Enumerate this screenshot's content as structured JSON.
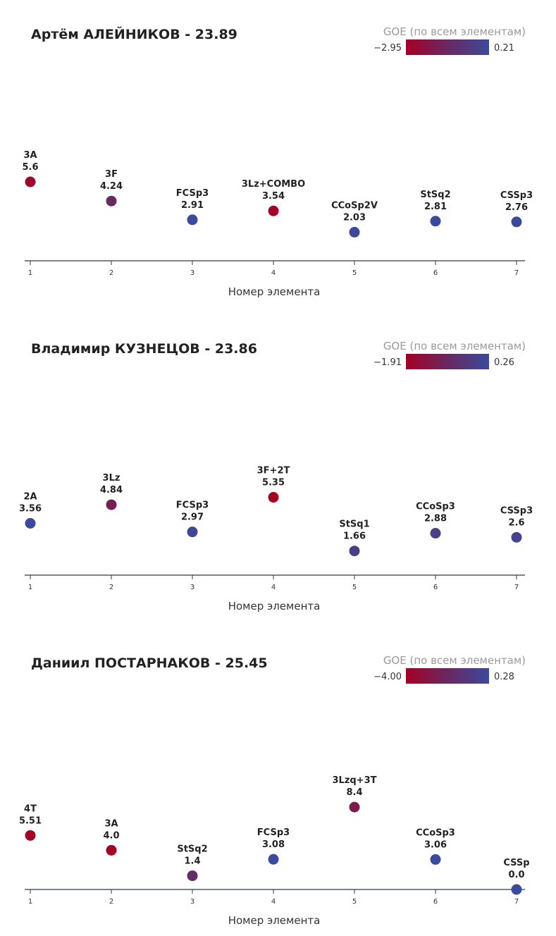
{
  "colors": {
    "goe_low": "#a50026",
    "goe_mid": "#6a2860",
    "goe_high": "#3b4a9c",
    "axis": "#2b3a4a"
  },
  "chart_data": [
    {
      "type": "scatter",
      "title": "Артём АЛЕЙНИКОВ - 23.89",
      "xlabel": "Номер элемента",
      "legend_title": "GOE (по всем элементам)",
      "legend_min_label": "−2.95",
      "legend_max_label": "0.21",
      "legend_min": -2.95,
      "legend_max": 0.21,
      "x_ticks": [
        "1",
        "2",
        "3",
        "4",
        "5",
        "6",
        "7"
      ],
      "xlim": [
        1,
        7
      ],
      "ylim": [
        0,
        6.4
      ],
      "points": [
        {
          "x": 1,
          "element": "3A",
          "value_label": "5.6",
          "value": 5.6,
          "goe": -2.8
        },
        {
          "x": 2,
          "element": "3F",
          "value_label": "4.24",
          "value": 4.24,
          "goe": -1.3
        },
        {
          "x": 3,
          "element": "FCSp3",
          "value_label": "2.91",
          "value": 2.91,
          "goe": 0.2
        },
        {
          "x": 4,
          "element": "3Lz+COMBO",
          "value_label": "3.54",
          "value": 3.54,
          "goe": -2.95
        },
        {
          "x": 5,
          "element": "CCoSp2V",
          "value_label": "2.03",
          "value": 2.03,
          "goe": 0.1
        },
        {
          "x": 6,
          "element": "StSq2",
          "value_label": "2.81",
          "value": 2.81,
          "goe": 0.21
        },
        {
          "x": 7,
          "element": "CSSp3",
          "value_label": "2.76",
          "value": 2.76,
          "goe": 0.16
        }
      ]
    },
    {
      "type": "scatter",
      "title": "Владимир КУЗНЕЦОВ - 23.86",
      "xlabel": "Номер элемента",
      "legend_title": "GOE (по всем элементам)",
      "legend_min_label": "−1.91",
      "legend_max_label": "0.26",
      "legend_min": -1.91,
      "legend_max": 0.26,
      "x_ticks": [
        "1",
        "2",
        "3",
        "4",
        "5",
        "6",
        "7"
      ],
      "xlim": [
        1,
        7
      ],
      "ylim": [
        0,
        6.2
      ],
      "points": [
        {
          "x": 1,
          "element": "2A",
          "value_label": "3.56",
          "value": 3.56,
          "goe": 0.26
        },
        {
          "x": 2,
          "element": "3Lz",
          "value_label": "4.84",
          "value": 4.84,
          "goe": -1.06
        },
        {
          "x": 3,
          "element": "FCSp3",
          "value_label": "2.97",
          "value": 2.97,
          "goe": 0.17
        },
        {
          "x": 4,
          "element": "3F+2T",
          "value_label": "5.35",
          "value": 5.35,
          "goe": -1.91
        },
        {
          "x": 5,
          "element": "StSq1",
          "value_label": "1.66",
          "value": 1.66,
          "goe": -0.14
        },
        {
          "x": 6,
          "element": "CCoSp3",
          "value_label": "2.88",
          "value": 2.88,
          "goe": -0.12
        },
        {
          "x": 7,
          "element": "CSSp3",
          "value_label": "2.6",
          "value": 2.6,
          "goe": 0.0
        }
      ]
    },
    {
      "type": "scatter",
      "title": "Даниил ПОСТАРНАКОВ - 25.45",
      "xlabel": "Номер элемента",
      "legend_title": "GOE (по всем элементам)",
      "legend_min_label": "−4.00",
      "legend_max_label": "0.28",
      "legend_min": -4.0,
      "legend_max": 0.28,
      "x_ticks": [
        "1",
        "2",
        "3",
        "4",
        "5",
        "6",
        "7"
      ],
      "xlim": [
        1,
        7
      ],
      "ylim": [
        0,
        9.2
      ],
      "points": [
        {
          "x": 1,
          "element": "4T",
          "value_label": "5.51",
          "value": 5.51,
          "goe": -4.0
        },
        {
          "x": 2,
          "element": "3A",
          "value_label": "4.0",
          "value": 4.0,
          "goe": -4.0
        },
        {
          "x": 3,
          "element": "StSq2",
          "value_label": "1.4",
          "value": 1.4,
          "goe": -1.5
        },
        {
          "x": 4,
          "element": "FCSp3",
          "value_label": "3.08",
          "value": 3.08,
          "goe": 0.28
        },
        {
          "x": 5,
          "element": "3Lzq+3T",
          "value_label": "8.4",
          "value": 8.4,
          "goe": -2.6
        },
        {
          "x": 6,
          "element": "CCoSp3",
          "value_label": "3.06",
          "value": 3.06,
          "goe": 0.26
        },
        {
          "x": 7,
          "element": "CSSp",
          "value_label": "0.0",
          "value": 0.0,
          "goe": 0.28
        }
      ]
    }
  ]
}
